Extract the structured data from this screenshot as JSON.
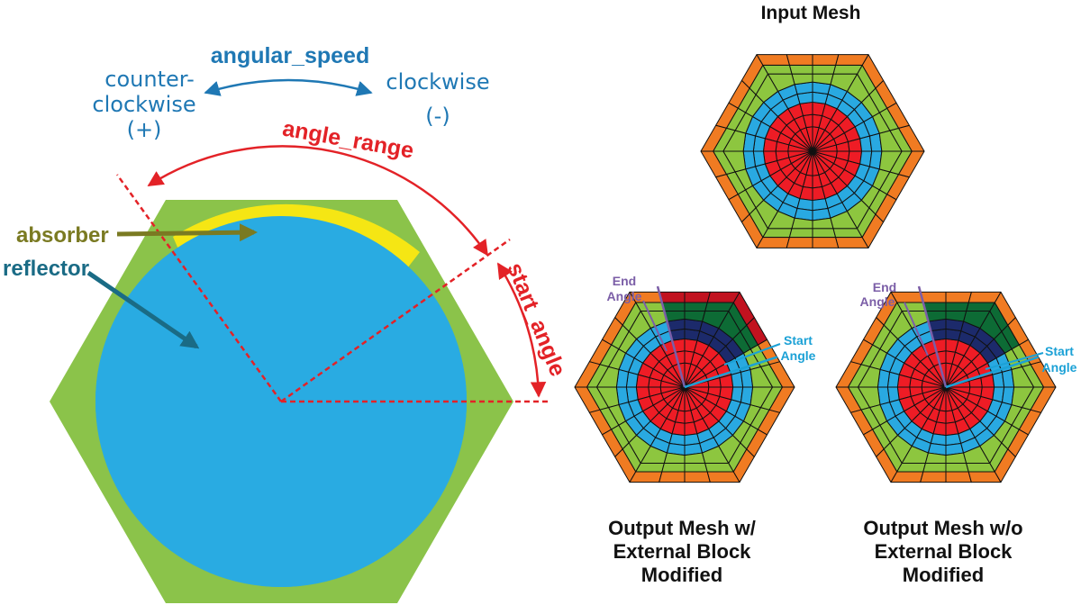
{
  "left_diagram": {
    "angular_speed": "angular_speed",
    "counter_clockwise_line1": "counter-",
    "counter_clockwise_line2": "clockwise",
    "counter_clockwise_sign": "(+)",
    "clockwise": "clockwise",
    "clockwise_sign": "(-)",
    "angle_range": "angle_range",
    "start_angle": "start_angle",
    "absorber": "absorber",
    "reflector": "reflector"
  },
  "meshes": {
    "input_title": "Input Mesh",
    "output_with": {
      "caption_line1": "Output Mesh w/",
      "caption_line2": "External Block",
      "caption_line3": "Modified",
      "end_angle_line1": "End",
      "end_angle_line2": "Angle",
      "start_angle_line1": "Start",
      "start_angle_line2": "Angle"
    },
    "output_without": {
      "caption_line1": "Output Mesh w/o",
      "caption_line2": "External Block",
      "caption_line3": "Modified",
      "end_angle_line1": "End",
      "end_angle_line2": "Angle",
      "start_angle_line1": "Start",
      "start_angle_line2": "Angle"
    }
  },
  "colors": {
    "hex_green": "#8bc34a",
    "reflector_blue": "#29abe2",
    "absorber_yellow": "#f5e614",
    "annotation_red": "#e32227",
    "annotation_blue": "#1f78b4",
    "absorber_olive": "#7a7a22",
    "reflector_teal": "#1a6b85",
    "mesh_orange": "#f07b22",
    "mesh_green": "#8dc63f",
    "mesh_blue": "#29a9e1",
    "mesh_red": "#ee1c25",
    "mod_dark_green": "#0d6b35",
    "mod_navy": "#1c2a6b",
    "mod_dark_red": "#c1121f",
    "label_purple": "#7b5ea7",
    "label_cyan": "#1ba1d6"
  }
}
